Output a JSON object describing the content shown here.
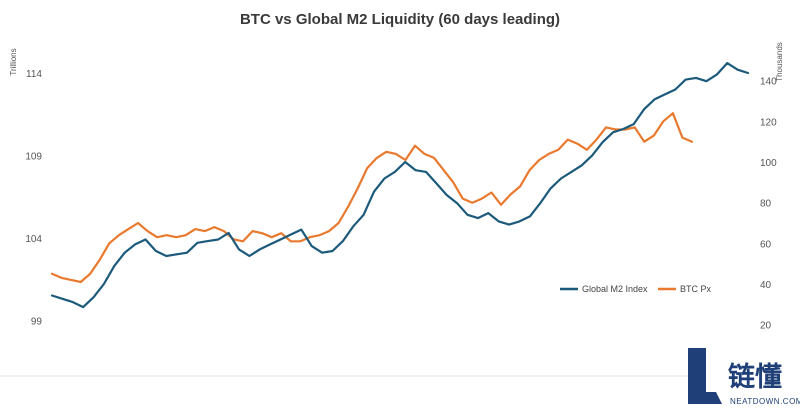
{
  "chart_data": {
    "type": "line",
    "title": "BTC vs Global M2 Liquidity (60 days leading)",
    "left_axis": {
      "unit": "Trillions",
      "ticks": [
        99,
        104,
        109,
        114
      ],
      "ylim": [
        97.5,
        116
      ]
    },
    "right_axis": {
      "unit": "Thousands",
      "ticks": [
        20,
        40,
        60,
        80,
        100,
        120,
        140
      ],
      "ylim": [
        10,
        160
      ]
    },
    "series": [
      {
        "name": "Global M2 Index",
        "axis": "left",
        "color": "#1c5a7c",
        "values": [
          100.5,
          100.3,
          100.1,
          99.8,
          100.4,
          101.2,
          102.3,
          103.1,
          103.6,
          103.9,
          103.2,
          102.9,
          103.0,
          103.1,
          103.7,
          103.8,
          103.9,
          104.3,
          103.3,
          102.9,
          103.3,
          103.6,
          103.9,
          104.2,
          104.5,
          103.5,
          103.1,
          103.2,
          103.8,
          104.7,
          105.4,
          106.8,
          107.6,
          108.0,
          108.6,
          108.1,
          108.0,
          107.3,
          106.6,
          106.1,
          105.4,
          105.2,
          105.5,
          105.0,
          104.8,
          105.0,
          105.3,
          106.1,
          107.0,
          107.6,
          108.0,
          108.4,
          109.0,
          109.8,
          110.4,
          110.6,
          110.9,
          111.8,
          112.4,
          112.7,
          113.0,
          113.6,
          113.7,
          113.5,
          113.9,
          114.6,
          114.2,
          114.0
        ]
      },
      {
        "name": "BTC Px",
        "axis": "right",
        "color": "#e8792e",
        "values": [
          45,
          43,
          42,
          41,
          45,
          52,
          60,
          64,
          67,
          70,
          66,
          63,
          64,
          63,
          64,
          67,
          66,
          68,
          66,
          62,
          61,
          66,
          65,
          63,
          65,
          61,
          61,
          63,
          64,
          66,
          70,
          78,
          87,
          97,
          102,
          105,
          104,
          101,
          108,
          104,
          102,
          96,
          90,
          82,
          80,
          82,
          85,
          79,
          84,
          88,
          96,
          101,
          104,
          106,
          111,
          109,
          106,
          111,
          117,
          116,
          116,
          117,
          110,
          113,
          120,
          124,
          112,
          110
        ]
      }
    ],
    "legend_position": "bottom-right",
    "grid": false
  },
  "watermark": {
    "brand": "链懂",
    "site": "NEATDOWN.COM"
  }
}
